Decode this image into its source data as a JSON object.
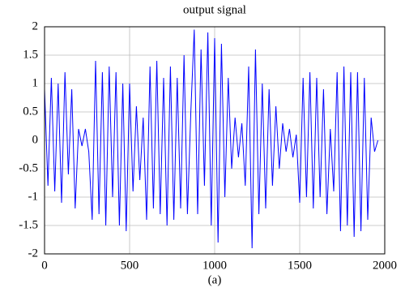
{
  "chart_data": {
    "type": "line",
    "title": "output signal",
    "xlabel": "(a)",
    "x": [
      0,
      20,
      40,
      60,
      80,
      100,
      120,
      140,
      160,
      180,
      200,
      220,
      240,
      260,
      280,
      300,
      320,
      340,
      360,
      380,
      400,
      420,
      440,
      460,
      480,
      500,
      520,
      540,
      560,
      580,
      600,
      620,
      640,
      660,
      680,
      700,
      720,
      740,
      760,
      780,
      800,
      820,
      840,
      860,
      880,
      900,
      920,
      940,
      960,
      980,
      1000,
      1020,
      1040,
      1060,
      1080,
      1100,
      1120,
      1140,
      1160,
      1180,
      1200,
      1220,
      1240,
      1260,
      1280,
      1300,
      1320,
      1340,
      1360,
      1380,
      1400,
      1420,
      1440,
      1460,
      1480,
      1500,
      1520,
      1540,
      1560,
      1580,
      1600,
      1620,
      1640,
      1660,
      1680,
      1700,
      1720,
      1740,
      1760,
      1780,
      1800,
      1820,
      1840,
      1860,
      1880,
      1900,
      1920,
      1940,
      1960
    ],
    "series": [
      {
        "color": "#0000ff",
        "values": [
          0.9,
          -0.8,
          1.1,
          -0.9,
          1.0,
          -1.1,
          1.2,
          -0.6,
          0.9,
          -1.2,
          0.2,
          -0.1,
          0.2,
          -0.2,
          -1.4,
          1.4,
          -1.3,
          1.2,
          -1.5,
          1.3,
          -1.0,
          1.2,
          -1.5,
          1.0,
          -1.6,
          1.0,
          -0.9,
          0.6,
          -0.7,
          0.4,
          -1.4,
          1.3,
          -1.2,
          1.4,
          -1.3,
          1.1,
          -1.5,
          1.3,
          -1.4,
          1.1,
          -1.2,
          1.5,
          -1.3,
          0.5,
          1.95,
          -1.3,
          1.6,
          -0.8,
          1.9,
          -1.5,
          1.8,
          -1.8,
          1.7,
          -1.0,
          1.1,
          -0.5,
          0.4,
          -0.3,
          0.3,
          -0.8,
          1.3,
          -1.9,
          1.6,
          -1.3,
          1.0,
          -1.2,
          0.9,
          -0.8,
          0.6,
          -0.5,
          0.3,
          -0.2,
          0.2,
          -0.3,
          0.1,
          -1.1,
          1.1,
          -1.0,
          1.2,
          -1.2,
          1.1,
          -1.0,
          0.9,
          -1.3,
          0.2,
          -0.9,
          1.2,
          -1.6,
          1.3,
          -1.5,
          1.2,
          -1.7,
          1.2,
          -1.6,
          1.1,
          -1.4,
          0.4,
          -0.2,
          0.0
        ]
      }
    ],
    "xlim": [
      0,
      2000
    ],
    "xticks": [
      0,
      500,
      1000,
      1500,
      2000
    ],
    "ylim": [
      -2,
      2
    ],
    "yticks": [
      -2,
      -1.5,
      -1,
      -0.5,
      0,
      0.5,
      1,
      1.5,
      2
    ],
    "grid": true
  }
}
